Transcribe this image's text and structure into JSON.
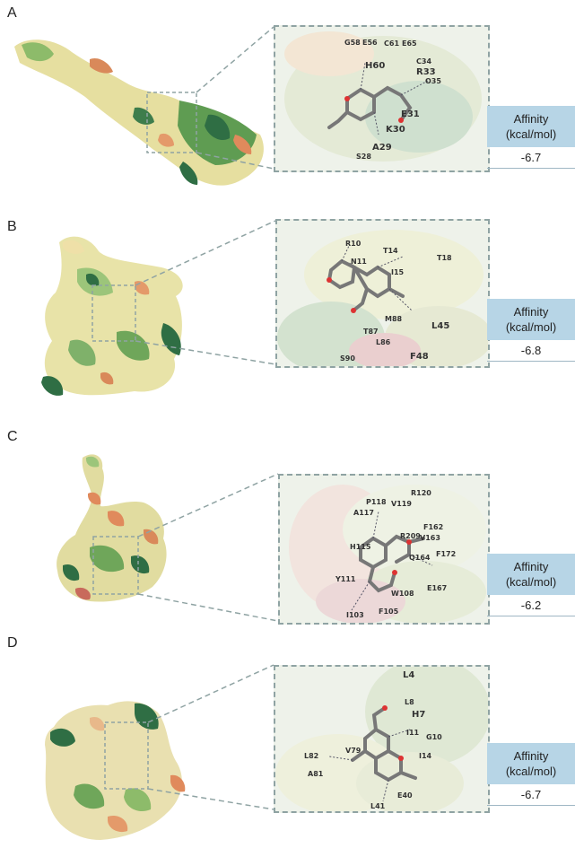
{
  "panels": [
    {
      "letter": "A",
      "affinity_label_line1": "Affinity",
      "affinity_label_line2": "(kcal/mol)",
      "affinity_value": "-6.7",
      "residues": [
        "G58",
        "E56",
        "C61",
        "E65",
        "H60",
        "C34",
        "R33",
        "O35",
        "E31",
        "K30",
        "A29",
        "S28"
      ]
    },
    {
      "letter": "B",
      "affinity_label_line1": "Affinity",
      "affinity_label_line2": "(kcal/mol)",
      "affinity_value": "-6.8",
      "residues": [
        "R10",
        "T14",
        "N11",
        "I15",
        "T18",
        "M88",
        "L45",
        "T87",
        "L86",
        "S90",
        "F48"
      ]
    },
    {
      "letter": "C",
      "affinity_label_line1": "Affinity",
      "affinity_label_line2": "(kcal/mol)",
      "affinity_value": "-6.2",
      "residues": [
        "R120",
        "P118",
        "V119",
        "A117",
        "F162",
        "R209",
        "V163",
        "H115",
        "F172",
        "Q164",
        "Y111",
        "E167",
        "W108",
        "I103",
        "F105"
      ]
    },
    {
      "letter": "D",
      "affinity_label_line1": "Affinity",
      "affinity_label_line2": "(kcal/mol)",
      "affinity_value": "-6.7",
      "residues": [
        "L4",
        "L8",
        "H7",
        "G10",
        "I11",
        "I14",
        "L82",
        "V79",
        "A81",
        "E40",
        "L41"
      ]
    }
  ],
  "colors": {
    "frame_dash": "#8fa3a3",
    "affinity_box": "#b7d5e6",
    "surface_light": "#e8e3a8",
    "surface_green": "#6fa65a",
    "surface_dark": "#2f6e44",
    "surface_orange": "#e08a5c"
  }
}
